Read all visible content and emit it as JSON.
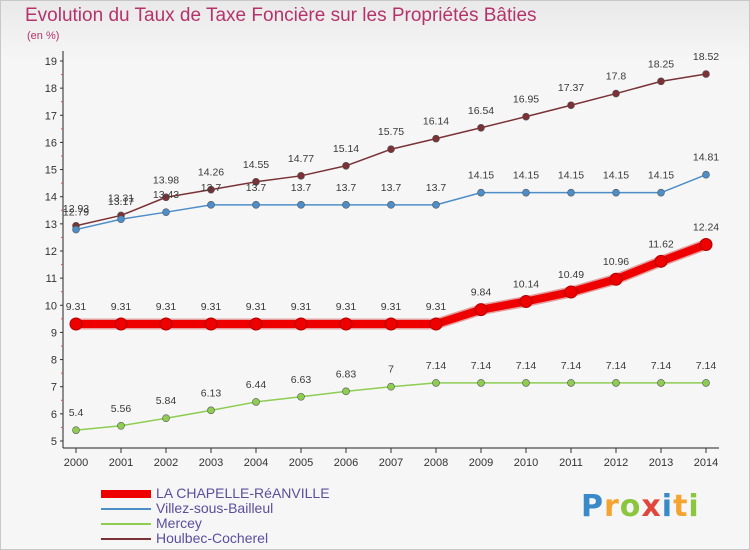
{
  "title": "Evolution du Taux de Taxe Foncière sur les Propriétés Bâties",
  "subtitle": "(en %)",
  "logo": "Proxiti",
  "chart_data": {
    "type": "line",
    "x": [
      "2000",
      "2001",
      "2002",
      "2003",
      "2004",
      "2005",
      "2006",
      "2007",
      "2008",
      "2009",
      "2010",
      "2011",
      "2012",
      "2013",
      "2014"
    ],
    "ylim": [
      5,
      19
    ],
    "yticks": [
      5,
      6,
      7,
      8,
      9,
      10,
      11,
      12,
      13,
      14,
      15,
      16,
      17,
      18,
      19
    ],
    "grid": false,
    "legend": "bottom-left",
    "series": [
      {
        "name": "LA CHAPELLE-RéANVILLE",
        "color": "#ee0000",
        "values": [
          9.31,
          9.31,
          9.31,
          9.31,
          9.31,
          9.31,
          9.31,
          9.31,
          9.31,
          9.84,
          10.14,
          10.49,
          10.96,
          11.62,
          12.24
        ],
        "labels": [
          "9.31",
          "9.31",
          "9.31",
          "9.31",
          "9.31",
          "9.31",
          "9.31",
          "9.31",
          "9.31",
          "9.84",
          "10.14",
          "10.49",
          "10.96",
          "11.62",
          "12.24"
        ]
      },
      {
        "name": "Villez-sous-Bailleul",
        "color": "#4d8ec9",
        "values": [
          12.79,
          13.17,
          13.43,
          13.7,
          13.7,
          13.7,
          13.7,
          13.7,
          13.7,
          14.15,
          14.15,
          14.15,
          14.15,
          14.15,
          14.81
        ],
        "labels": [
          "12.79",
          "13.17",
          "13.43",
          "13.7",
          "13.7",
          "13.7",
          "13.7",
          "13.7",
          "13.7",
          "14.15",
          "14.15",
          "14.15",
          "14.15",
          "14.15",
          "14.81"
        ]
      },
      {
        "name": "Mercey",
        "color": "#8ccd52",
        "values": [
          5.4,
          5.56,
          5.84,
          6.13,
          6.44,
          6.63,
          6.83,
          7,
          7.14,
          7.14,
          7.14,
          7.14,
          7.14,
          7.14,
          7.14
        ],
        "labels": [
          "5.4",
          "5.56",
          "5.84",
          "6.13",
          "6.44",
          "6.63",
          "6.83",
          "7",
          "7.14",
          "7.14",
          "7.14",
          "7.14",
          "7.14",
          "7.14",
          "7.14"
        ]
      },
      {
        "name": "Houlbec-Cocherel",
        "color": "#7a3236",
        "values": [
          12.93,
          13.31,
          13.98,
          14.26,
          14.55,
          14.77,
          15.14,
          15.75,
          16.14,
          16.54,
          16.95,
          17.37,
          17.8,
          18.25,
          18.52
        ],
        "labels": [
          "12.93",
          "13.31",
          "13.98",
          "14.26",
          "14.55",
          "14.77",
          "15.14",
          "15.75",
          "16.14",
          "16.54",
          "16.95",
          "17.37",
          "17.8",
          "18.25",
          "18.52"
        ]
      }
    ]
  }
}
